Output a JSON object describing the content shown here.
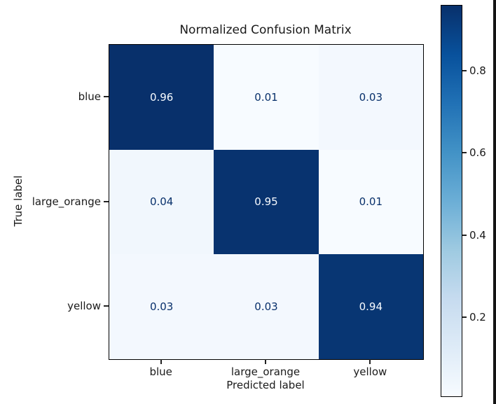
{
  "chart_data": {
    "type": "heatmap",
    "title": "Normalized Confusion Matrix",
    "xlabel": "Predicted label",
    "ylabel": "True label",
    "x_categories": [
      "blue",
      "large_orange",
      "yellow"
    ],
    "y_categories": [
      "blue",
      "large_orange",
      "yellow"
    ],
    "values": [
      [
        0.96,
        0.01,
        0.03
      ],
      [
        0.04,
        0.95,
        0.01
      ],
      [
        0.03,
        0.03,
        0.94
      ]
    ],
    "value_decimals": 2,
    "vmin": 0.01,
    "vmax": 0.96,
    "colormap": "Blues",
    "colormap_stops": [
      "#f7fbff",
      "#deebf7",
      "#c6dbef",
      "#9ecae1",
      "#6baed6",
      "#4292c6",
      "#2171b5",
      "#08519c",
      "#08306b"
    ],
    "text_color_on_dark": "#f7fbff",
    "text_color_on_light": "#08306b",
    "colorbar_ticks": [
      0.2,
      0.4,
      0.6,
      0.8
    ],
    "colorbar_position": "right",
    "grid": false,
    "legend": false
  },
  "frame": {
    "edge_color": "#141414"
  }
}
